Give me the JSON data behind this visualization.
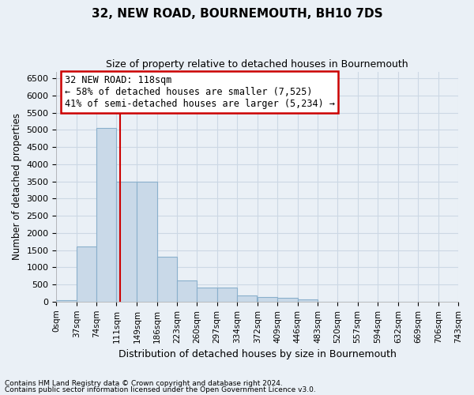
{
  "title": "32, NEW ROAD, BOURNEMOUTH, BH10 7DS",
  "subtitle": "Size of property relative to detached houses in Bournemouth",
  "xlabel": "Distribution of detached houses by size in Bournemouth",
  "ylabel": "Number of detached properties",
  "footer_line1": "Contains HM Land Registry data © Crown copyright and database right 2024.",
  "footer_line2": "Contains public sector information licensed under the Open Government Licence v3.0.",
  "bar_color": "#c9d9e8",
  "bar_edge_color": "#8ab0cc",
  "grid_color": "#ccd8e4",
  "background_color": "#eaf0f6",
  "red_line_x": 118,
  "bin_width": 37,
  "bin_starts": [
    0,
    37,
    74,
    111,
    149,
    186,
    223,
    260,
    297,
    334,
    372,
    409,
    446,
    483,
    520,
    557,
    594,
    632,
    669,
    706
  ],
  "bin_labels": [
    "0sqm",
    "37sqm",
    "74sqm",
    "111sqm",
    "149sqm",
    "186sqm",
    "223sqm",
    "260sqm",
    "297sqm",
    "334sqm",
    "372sqm",
    "409sqm",
    "446sqm",
    "483sqm",
    "520sqm",
    "557sqm",
    "594sqm",
    "632sqm",
    "669sqm",
    "706sqm",
    "743sqm"
  ],
  "bar_heights": [
    50,
    1600,
    5050,
    3500,
    3500,
    1300,
    620,
    420,
    420,
    190,
    140,
    100,
    60,
    0,
    0,
    0,
    0,
    0,
    0,
    0
  ],
  "ylim": [
    0,
    6700
  ],
  "yticks": [
    0,
    500,
    1000,
    1500,
    2000,
    2500,
    3000,
    3500,
    4000,
    4500,
    5000,
    5500,
    6000,
    6500
  ],
  "annotation_text": "32 NEW ROAD: 118sqm\n← 58% of detached houses are smaller (7,525)\n41% of semi-detached houses are larger (5,234) →",
  "annotation_box_color": "#ffffff",
  "annotation_box_edge": "#cc0000",
  "property_sqm": 118
}
